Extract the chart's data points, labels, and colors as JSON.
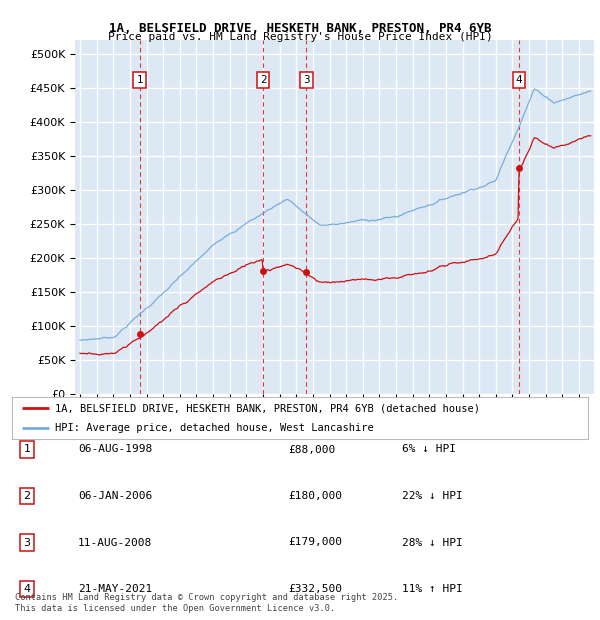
{
  "title_line1": "1A, BELSFIELD DRIVE, HESKETH BANK, PRESTON, PR4 6YB",
  "title_line2": "Price paid vs. HM Land Registry's House Price Index (HPI)",
  "ylabel_ticks": [
    "£0",
    "£50K",
    "£100K",
    "£150K",
    "£200K",
    "£250K",
    "£300K",
    "£350K",
    "£400K",
    "£450K",
    "£500K"
  ],
  "ytick_vals": [
    0,
    50000,
    100000,
    150000,
    200000,
    250000,
    300000,
    350000,
    400000,
    450000,
    500000
  ],
  "ylim": [
    0,
    520000
  ],
  "xlim_start": 1994.7,
  "xlim_end": 2025.9,
  "background_color": "#dde8f5",
  "grid_color": "#ffffff",
  "hpi_line_color": "#7aaddd",
  "price_line_color": "#cc1111",
  "sale_marker_color": "#cc1111",
  "vline_color": "#ee3333",
  "sales": [
    {
      "num": 1,
      "date_dec": 1998.59,
      "price": 88000,
      "label": "06-AUG-1998",
      "amount": "£88,000",
      "hpi_rel": "6% ↓ HPI"
    },
    {
      "num": 2,
      "date_dec": 2006.01,
      "price": 180000,
      "label": "06-JAN-2006",
      "amount": "£180,000",
      "hpi_rel": "22% ↓ HPI"
    },
    {
      "num": 3,
      "date_dec": 2008.61,
      "price": 179000,
      "label": "11-AUG-2008",
      "amount": "£179,000",
      "hpi_rel": "28% ↓ HPI"
    },
    {
      "num": 4,
      "date_dec": 2021.38,
      "price": 332500,
      "label": "21-MAY-2021",
      "amount": "£332,500",
      "hpi_rel": "11% ↑ HPI"
    }
  ],
  "legend_entries": [
    "1A, BELSFIELD DRIVE, HESKETH BANK, PRESTON, PR4 6YB (detached house)",
    "HPI: Average price, detached house, West Lancashire"
  ],
  "footer": "Contains HM Land Registry data © Crown copyright and database right 2025.\nThis data is licensed under the Open Government Licence v3.0."
}
